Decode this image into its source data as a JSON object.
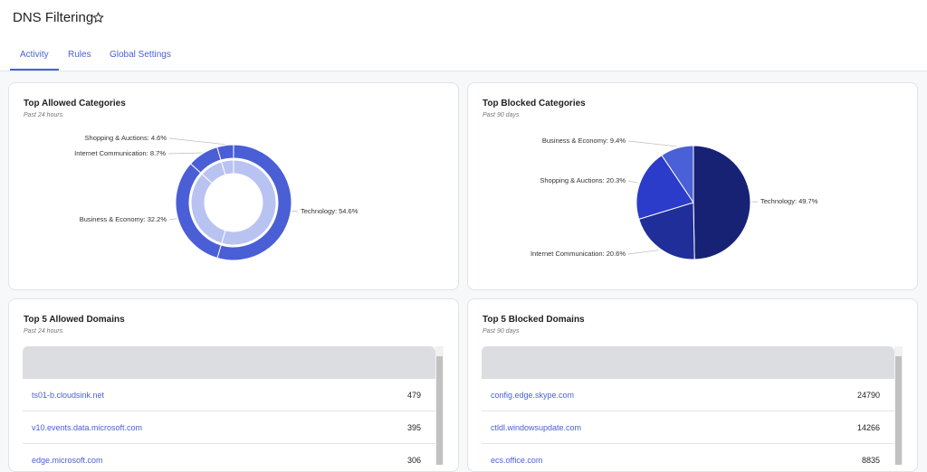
{
  "header": {
    "title": "DNS Filtering"
  },
  "tabs": [
    "Activity",
    "Rules",
    "Global Settings"
  ],
  "charts": [
    {
      "type": "donut",
      "title": "Top Allowed Categories",
      "subtitle": "Past 24 hours",
      "labels": [
        "Technology: 54.6%",
        "Business & Economy: 32.2%",
        "Internet Communication: 8.7%",
        "Shopping & Auctions: 4.6%"
      ],
      "values": [
        54.6,
        32.2,
        8.7,
        4.6
      ],
      "color": "#4a5ed6",
      "inner_color": "#b9c3f1"
    },
    {
      "type": "pie",
      "title": "Top Blocked Categories",
      "subtitle": "Past 90 days",
      "labels": [
        "Technology: 49.7%",
        "Internet Communication: 20.6%",
        "Shopping & Auctions: 20.3%",
        "Business & Economy: 9.4%"
      ],
      "values": [
        49.7,
        20.6,
        20.3,
        9.4
      ],
      "colors": [
        "#172275",
        "#1f2e98",
        "#2a3cc9",
        "#4a60d6"
      ]
    }
  ],
  "tables": [
    {
      "title": "Top 5 Allowed Domains",
      "subtitle": "Past 24 hours",
      "rows": [
        [
          "ts01-b.cloudsink.net",
          "479"
        ],
        [
          "v10.events.data.microsoft.com",
          "395"
        ],
        [
          "edge.microsoft.com",
          "306"
        ]
      ]
    },
    {
      "title": "Top 5 Blocked Domains",
      "subtitle": "Past 90 days",
      "rows": [
        [
          "config.edge.skype.com",
          "24790"
        ],
        [
          "ctldl.windowsupdate.com",
          "14266"
        ],
        [
          "ecs.office.com",
          "8835"
        ]
      ]
    }
  ]
}
